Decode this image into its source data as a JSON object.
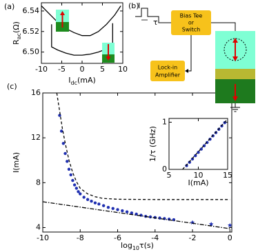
{
  "chart_data": [
    {
      "type": "line",
      "panel_label": "(a)",
      "ylabel": "R",
      "ylabel_sub": "ac",
      "ylabel_unit": "(Ω)",
      "xlabel": "I",
      "xlabel_sub": "dc",
      "xlabel_unit": "(mA)",
      "xlim": [
        -10,
        10
      ],
      "ylim": [
        6.489,
        6.548
      ],
      "xticks": [
        -10,
        -5,
        0,
        5,
        10
      ],
      "yticks": [
        {
          "value": 6.5,
          "label": "6.50"
        },
        {
          "value": 6.52,
          "label": "6.52"
        },
        {
          "value": 6.54,
          "label": "6.54"
        }
      ],
      "series": [
        {
          "color": "#000000",
          "mode": "line",
          "x": [
            -10,
            -8,
            -6,
            -4,
            -2,
            0,
            2,
            4,
            6,
            8,
            9.5
          ],
          "values": [
            6.545,
            6.537,
            6.529,
            6.523,
            6.519,
            6.516,
            6.516,
            6.52,
            6.527,
            6.536,
            6.545
          ]
        },
        {
          "color": "#000000",
          "mode": "line",
          "x": [
            -7.5,
            -7.5,
            -6,
            -4,
            -2,
            0,
            2,
            4,
            6,
            7.5,
            7.5
          ],
          "values": [
            6.527,
            6.505,
            6.502,
            6.499,
            6.497,
            6.497,
            6.498,
            6.5,
            6.503,
            6.505,
            6.528
          ]
        }
      ]
    },
    {
      "type": "scatter",
      "panel_label": "(c)",
      "ylabel": "I(mA)",
      "xlabel": "log",
      "xlabel_sub": "10",
      "xlabel_unit": "τ(s)",
      "xlim": [
        -10,
        0.1
      ],
      "ylim": [
        3.6,
        16
      ],
      "xticks": [
        -10,
        -8,
        -6,
        -4,
        -2,
        0
      ],
      "yticks": [
        4,
        8,
        12,
        16
      ],
      "series": [
        {
          "color": "#1f2fb0",
          "mode": "dots",
          "x": [
            -9.1,
            -9.0,
            -8.9,
            -8.8,
            -8.7,
            -8.6,
            -8.5,
            -8.4,
            -8.3,
            -8.2,
            -8.1,
            -8,
            -7.8,
            -7.6,
            -7.4,
            -7.2,
            -7,
            -6.75,
            -6.5,
            -6.25,
            -6,
            -5.75,
            -5.5,
            -5.25,
            -5,
            -4.75,
            -4.5,
            -4.25,
            -4,
            -3.75,
            -3.5,
            -3.25,
            -3
          ],
          "values": [
            14,
            12.6,
            11.5,
            10.6,
            9.9,
            9.2,
            8.7,
            8.2,
            7.8,
            7.5,
            7.2,
            7.0,
            6.7,
            6.5,
            6.35,
            6.2,
            6.1,
            5.95,
            5.8,
            5.7,
            5.6,
            5.5,
            5.4,
            5.3,
            5.2,
            5.1,
            5.0,
            4.95,
            4.9,
            4.85,
            4.8,
            4.75,
            4.7
          ]
        },
        {
          "color": "#1f2fb0",
          "mode": "stars",
          "x": [
            -2,
            -1,
            0
          ],
          "values": [
            4.45,
            4.3,
            4.2
          ]
        },
        {
          "color": "#000000",
          "mode": "line",
          "dash": "dashed",
          "x": [
            -9.25,
            -9.1,
            -8.95,
            -8.8,
            -8.6,
            -8.4,
            -8.2,
            -8,
            -7.6,
            -7.2,
            -6.8,
            -6,
            -4,
            0
          ],
          "values": [
            16,
            14.4,
            12.8,
            11.5,
            10,
            8.9,
            8.1,
            7.5,
            7.0,
            6.75,
            6.6,
            6.52,
            6.5,
            6.5
          ]
        },
        {
          "color": "#000000",
          "mode": "line",
          "dash": "dashdot",
          "x": [
            -10,
            0
          ],
          "values": [
            6.3,
            3.9
          ]
        }
      ]
    },
    {
      "type": "scatter",
      "ylabel": "1/τ (GHz)",
      "xlabel": "I(mA)",
      "xlim": [
        5,
        15
      ],
      "ylim": [
        0,
        1.08
      ],
      "xticks": [
        5,
        10,
        15
      ],
      "yticks": [
        0,
        1
      ],
      "series": [
        {
          "color": "#1f2fb0",
          "mode": "dots",
          "x": [
            8,
            8.5,
            9,
            9.5,
            10,
            10.5,
            11,
            11.5,
            12,
            12.5,
            13,
            13.5,
            14,
            14.5
          ],
          "values": [
            0.08,
            0.15,
            0.22,
            0.29,
            0.36,
            0.43,
            0.5,
            0.57,
            0.64,
            0.71,
            0.78,
            0.85,
            0.92,
            0.99
          ]
        },
        {
          "color": "#000000",
          "mode": "line",
          "dash": "dashed",
          "x": [
            7.3,
            15
          ],
          "values": [
            0,
            1.07
          ]
        }
      ]
    }
  ],
  "diagram": {
    "panel_label": "(b)",
    "pulse_label": "I",
    "width_label": "τ",
    "switch_box": [
      "Bias Tee",
      "or",
      "Switch"
    ],
    "lockin_box": [
      "Lock-in",
      "Amplifier"
    ]
  }
}
